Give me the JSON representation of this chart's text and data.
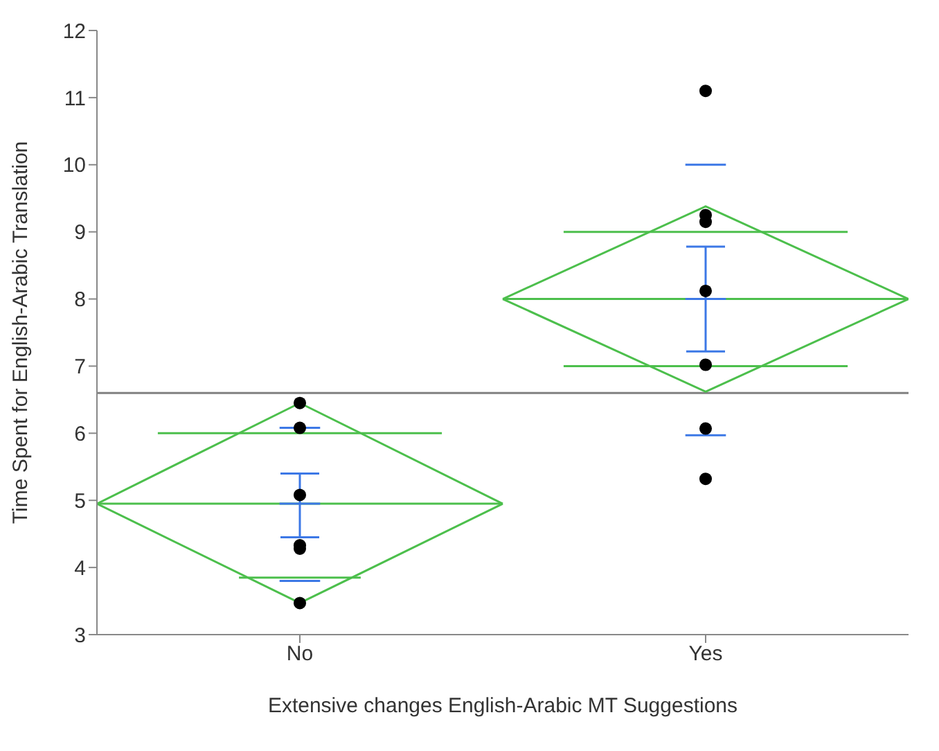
{
  "chart_data": {
    "type": "line",
    "xlabel": "Extensive changes English-Arabic MT Suggestions",
    "ylabel": "Time Spent for English-Arabic Translation",
    "ylim": [
      3,
      12
    ],
    "yticks": [
      3,
      4,
      5,
      6,
      7,
      8,
      9,
      10,
      11,
      12
    ],
    "categories": [
      null,
      null,
      null,
      null,
      null,
      null,
      null,
      null,
      null,
      null,
      "No",
      null,
      null,
      null,
      null,
      null,
      null,
      null,
      null,
      null,
      null,
      null,
      null,
      null,
      null,
      null,
      null,
      null,
      null,
      null,
      "Yes",
      null,
      null,
      null,
      null,
      null,
      null,
      null,
      null,
      null,
      null
    ],
    "series": [
      {
        "color": "#4cbf4c",
        "values": [
          4.95,
          null,
          null,
          null,
          null,
          null,
          null,
          null,
          null,
          null,
          6.45,
          null,
          null,
          null,
          null,
          null,
          null,
          null,
          null,
          null,
          4.95,
          null,
          null,
          null,
          null,
          null,
          null,
          null,
          null,
          null,
          null,
          null,
          null,
          null,
          null,
          null,
          null,
          null,
          null,
          null,
          null
        ]
      },
      {
        "color": "#4cbf4c",
        "values": [
          4.95,
          null,
          null,
          null,
          null,
          null,
          null,
          null,
          null,
          null,
          3.47,
          null,
          null,
          null,
          null,
          null,
          null,
          null,
          null,
          null,
          4.95,
          null,
          null,
          null,
          null,
          null,
          null,
          null,
          null,
          null,
          null,
          null,
          null,
          null,
          null,
          null,
          null,
          null,
          null,
          null,
          null
        ]
      },
      {
        "color": "#4cbf4c",
        "values": [
          null,
          null,
          null,
          null,
          null,
          null,
          null,
          null,
          null,
          null,
          null,
          null,
          null,
          null,
          null,
          null,
          null,
          null,
          null,
          null,
          8.0,
          null,
          null,
          null,
          null,
          null,
          null,
          null,
          null,
          null,
          9.38,
          null,
          null,
          null,
          null,
          null,
          null,
          null,
          null,
          null,
          8.0
        ]
      },
      {
        "color": "#4cbf4c",
        "values": [
          null,
          null,
          null,
          null,
          null,
          null,
          null,
          null,
          null,
          null,
          null,
          null,
          null,
          null,
          null,
          null,
          null,
          null,
          null,
          null,
          8.0,
          null,
          null,
          null,
          null,
          null,
          null,
          null,
          null,
          null,
          6.62,
          null,
          null,
          null,
          null,
          null,
          null,
          null,
          null,
          null,
          8.0
        ]
      },
      {
        "color": "#4cbf4c",
        "values": [
          4.95,
          null,
          null,
          null,
          null,
          null,
          null,
          null,
          null,
          null,
          null,
          null,
          null,
          null,
          null,
          null,
          null,
          null,
          null,
          null,
          4.95,
          null,
          null,
          null,
          null,
          null,
          null,
          null,
          null,
          null,
          null,
          null,
          null,
          null,
          null,
          null,
          null,
          null,
          null,
          null,
          null
        ]
      },
      {
        "color": "#4cbf4c",
        "values": [
          null,
          null,
          null,
          null,
          null,
          null,
          null,
          null,
          null,
          null,
          null,
          null,
          null,
          null,
          null,
          null,
          null,
          null,
          null,
          null,
          8.0,
          null,
          null,
          null,
          null,
          null,
          null,
          null,
          null,
          null,
          null,
          null,
          null,
          null,
          null,
          null,
          null,
          null,
          null,
          null,
          8.0
        ]
      },
      {
        "color": "#3c78e6",
        "values": [
          null,
          null,
          null,
          null,
          null,
          null,
          null,
          null,
          null,
          4.95,
          4.95,
          4.95,
          null,
          null,
          null,
          null,
          null,
          null,
          null,
          null,
          null,
          null,
          null,
          null,
          null,
          null,
          null,
          null,
          null,
          null,
          null,
          null,
          null,
          null,
          null,
          null,
          null,
          null,
          null,
          null,
          null
        ],
        "errors": [
          null,
          null,
          null,
          null,
          null,
          null,
          null,
          null,
          null,
          null,
          [
            4.45,
            5.4
          ],
          null,
          null,
          null,
          null,
          null,
          null,
          null,
          null,
          null,
          null,
          null,
          null,
          null,
          null,
          null,
          null,
          null,
          null,
          null,
          null,
          null,
          null,
          null,
          null,
          null,
          null,
          null,
          null,
          null,
          null
        ]
      },
      {
        "color": "#3c78e6",
        "values": [
          null,
          null,
          null,
          null,
          null,
          null,
          null,
          null,
          null,
          null,
          null,
          null,
          null,
          null,
          null,
          null,
          null,
          null,
          null,
          null,
          null,
          null,
          null,
          null,
          null,
          null,
          null,
          null,
          null,
          8.0,
          8.0,
          8.0,
          null,
          null,
          null,
          null,
          null,
          null,
          null,
          null,
          null
        ],
        "errors": [
          null,
          null,
          null,
          null,
          null,
          null,
          null,
          null,
          null,
          null,
          null,
          null,
          null,
          null,
          null,
          null,
          null,
          null,
          null,
          null,
          null,
          null,
          null,
          null,
          null,
          null,
          null,
          null,
          null,
          null,
          [
            7.22,
            8.78
          ],
          null,
          null,
          null,
          null,
          null,
          null,
          null,
          null,
          null,
          null
        ]
      },
      {
        "color": "#4cbf4c",
        "values": [
          null,
          null,
          null,
          6.0,
          null,
          null,
          null,
          null,
          null,
          null,
          null,
          null,
          null,
          null,
          null,
          null,
          null,
          6.0,
          null,
          null,
          null,
          null,
          null,
          null,
          null,
          null,
          null,
          null,
          null,
          null,
          null,
          null,
          null,
          null,
          null,
          null,
          null,
          null,
          null,
          null,
          null
        ]
      },
      {
        "color": "#4cbf4c",
        "values": [
          null,
          null,
          null,
          null,
          null,
          null,
          null,
          3.85,
          null,
          null,
          null,
          null,
          null,
          3.85,
          null,
          null,
          null,
          null,
          null,
          null,
          null,
          null,
          null,
          null,
          null,
          null,
          null,
          null,
          null,
          null,
          null,
          null,
          null,
          null,
          null,
          null,
          null,
          null,
          null,
          null,
          null
        ]
      },
      {
        "color": "#4cbf4c",
        "values": [
          null,
          null,
          null,
          null,
          null,
          null,
          null,
          null,
          null,
          null,
          null,
          null,
          null,
          null,
          null,
          null,
          null,
          null,
          null,
          null,
          null,
          null,
          null,
          9.0,
          null,
          null,
          null,
          null,
          null,
          null,
          null,
          null,
          null,
          null,
          null,
          null,
          null,
          9.0,
          null,
          null,
          null
        ]
      },
      {
        "color": "#4cbf4c",
        "values": [
          null,
          null,
          null,
          null,
          null,
          null,
          null,
          null,
          null,
          null,
          null,
          null,
          null,
          null,
          null,
          null,
          null,
          null,
          null,
          null,
          null,
          null,
          null,
          7.0,
          null,
          null,
          null,
          null,
          null,
          null,
          null,
          null,
          null,
          null,
          null,
          null,
          null,
          7.0,
          null,
          null,
          null
        ]
      },
      {
        "color": "#3c78e6",
        "values": [
          null,
          null,
          null,
          null,
          null,
          null,
          null,
          null,
          null,
          3.8,
          null,
          3.8,
          null,
          null,
          null,
          null,
          null,
          null,
          null,
          null,
          null,
          null,
          null,
          null,
          null,
          null,
          null,
          null,
          null,
          null,
          null,
          null,
          null,
          null,
          null,
          null,
          null,
          null,
          null,
          null,
          null
        ]
      },
      {
        "color": "#3c78e6",
        "values": [
          null,
          null,
          null,
          null,
          null,
          null,
          null,
          null,
          null,
          6.08,
          null,
          6.08,
          null,
          null,
          null,
          null,
          null,
          null,
          null,
          null,
          null,
          null,
          null,
          null,
          null,
          null,
          null,
          null,
          null,
          null,
          null,
          null,
          null,
          null,
          null,
          null,
          null,
          null,
          null,
          null,
          null
        ]
      },
      {
        "color": "#3c78e6",
        "values": [
          null,
          null,
          null,
          null,
          null,
          null,
          null,
          null,
          null,
          null,
          null,
          null,
          null,
          null,
          null,
          null,
          null,
          null,
          null,
          null,
          null,
          null,
          null,
          null,
          null,
          null,
          null,
          null,
          null,
          5.97,
          null,
          5.97,
          null,
          null,
          null,
          null,
          null,
          null,
          null,
          null,
          null
        ]
      },
      {
        "color": "#3c78e6",
        "values": [
          null,
          null,
          null,
          null,
          null,
          null,
          null,
          null,
          null,
          null,
          null,
          null,
          null,
          null,
          null,
          null,
          null,
          null,
          null,
          null,
          null,
          null,
          null,
          null,
          null,
          null,
          null,
          null,
          null,
          10.0,
          null,
          10.0,
          null,
          null,
          null,
          null,
          null,
          null,
          null,
          null,
          null
        ]
      },
      {
        "type": "scatter",
        "color": "#000000",
        "marker": "circle",
        "x": [
          "No",
          "No",
          "No",
          "No",
          "No",
          "No",
          "Yes",
          "Yes",
          "Yes",
          "Yes",
          "Yes",
          "Yes",
          "Yes"
        ],
        "values": [
          6.45,
          6.08,
          5.08,
          4.33,
          4.28,
          3.47,
          11.1,
          9.25,
          9.15,
          8.12,
          7.02,
          6.07,
          5.32
        ]
      }
    ],
    "ref_lines": [
      {
        "axis": "y",
        "value": 6.6,
        "color": "#808080"
      }
    ]
  }
}
